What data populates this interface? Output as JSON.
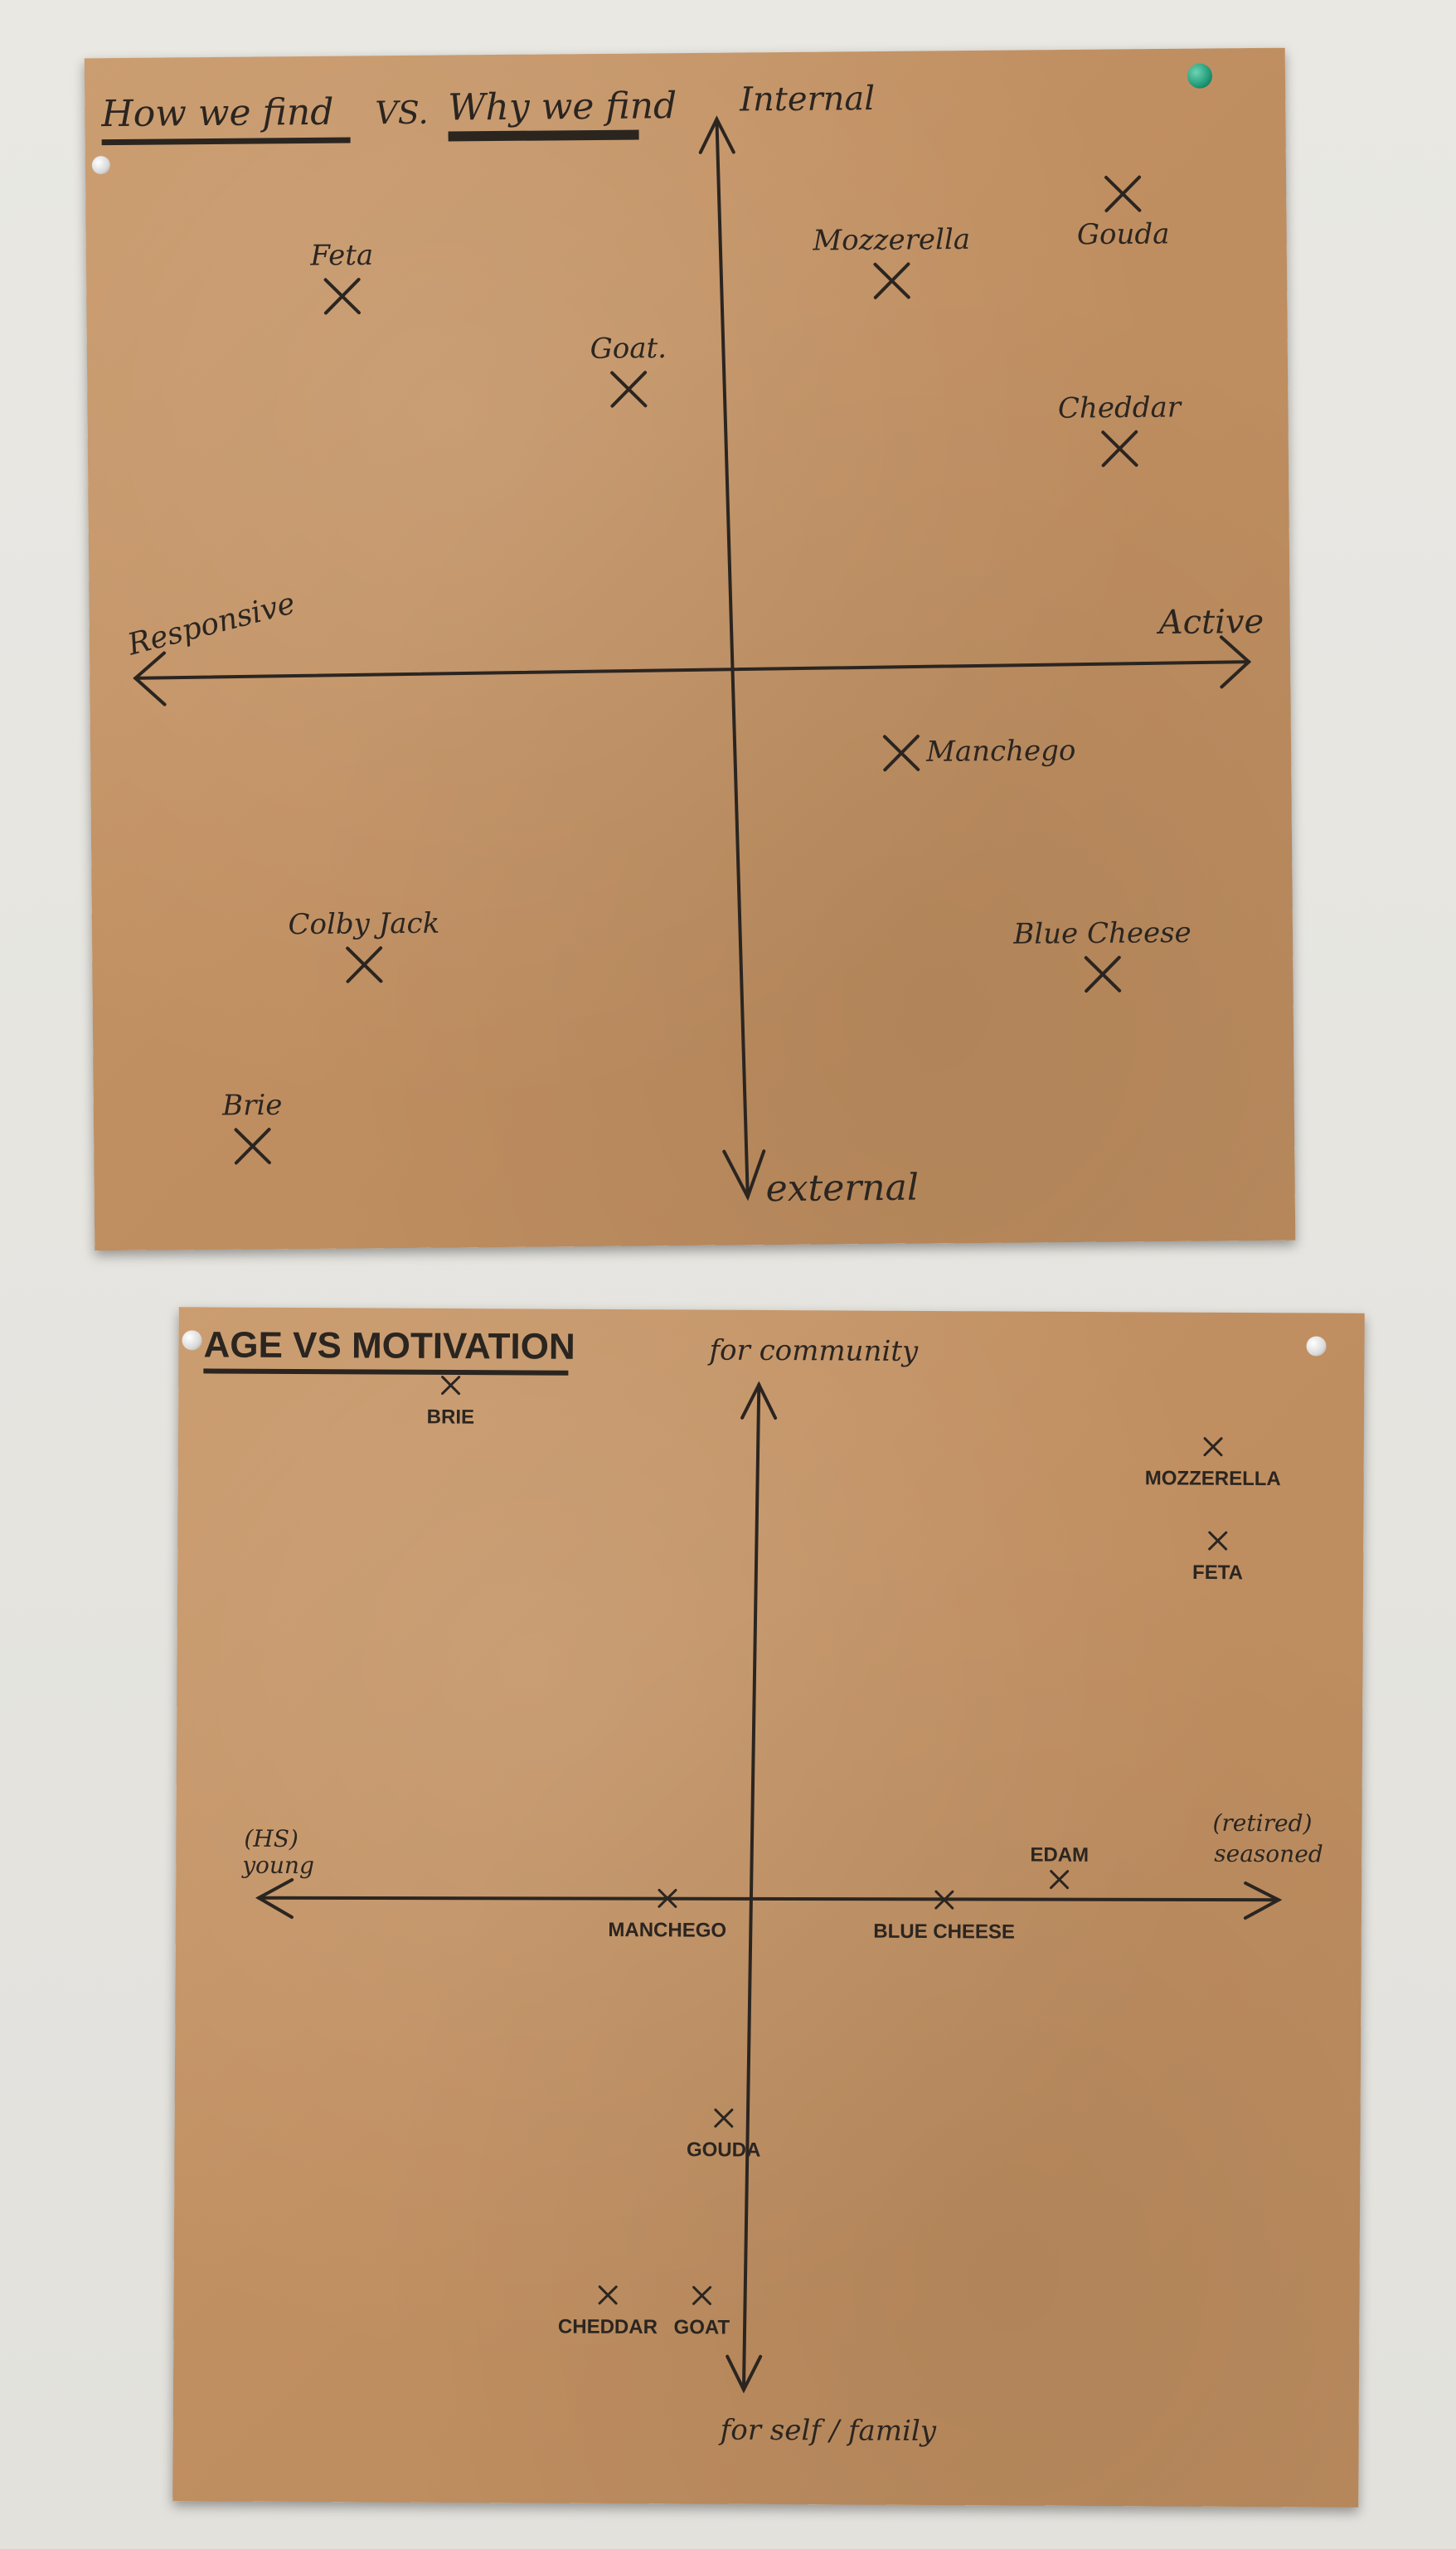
{
  "posters": [
    {
      "title_left": "How we find",
      "title_mid": "VS.",
      "title_right": "Why we find",
      "axis_top": "Internal",
      "axis_bottom": "external",
      "axis_left": "Responsive",
      "axis_right": "Active"
    },
    {
      "title": "AGE VS MOTIVATION",
      "axis_top": "for community",
      "axis_bottom": "for self / family",
      "axis_left_line1": "(HS)",
      "axis_left_line2": "young",
      "axis_right_line1": "(retired)",
      "axis_right_line2": "seasoned"
    }
  ],
  "chart_data": [
    {
      "type": "scatter",
      "title": "How we find VS. Why we find",
      "xlabel_negative": "Responsive",
      "xlabel_positive": "Active",
      "ylabel_positive": "Internal",
      "ylabel_negative": "external",
      "xlim": [
        -1,
        1
      ],
      "ylim": [
        -1,
        1
      ],
      "points": [
        {
          "label": "Feta",
          "x": -0.71,
          "y": 0.71
        },
        {
          "label": "Goat.",
          "x": -0.18,
          "y": 0.53
        },
        {
          "label": "Mozzerella",
          "x": 0.31,
          "y": 0.73
        },
        {
          "label": "Gouda",
          "x": 0.74,
          "y": 0.89
        },
        {
          "label": "Cheddar",
          "x": 0.73,
          "y": 0.41
        },
        {
          "label": "Manchego",
          "x": 0.32,
          "y": -0.16
        },
        {
          "label": "Blue Cheese",
          "x": 0.69,
          "y": -0.58
        },
        {
          "label": "Colby Jack",
          "x": -0.68,
          "y": -0.55
        },
        {
          "label": "Brie",
          "x": -0.89,
          "y": -0.89
        }
      ]
    },
    {
      "type": "scatter",
      "title": "AGE VS MOTIVATION",
      "xlabel_negative": "(HS) young",
      "xlabel_positive": "(retired) seasoned",
      "ylabel_positive": "for community",
      "ylabel_negative": "for self / family",
      "xlim": [
        -1,
        1
      ],
      "ylim": [
        -1,
        1
      ],
      "points": [
        {
          "label": "BRIE",
          "x": -0.59,
          "y": 0.98
        },
        {
          "label": "MOZZERELLA",
          "x": 0.87,
          "y": 0.87
        },
        {
          "label": "FETA",
          "x": 0.88,
          "y": 0.69
        },
        {
          "label": "EDAM",
          "x": 0.58,
          "y": 0.04
        },
        {
          "label": "MANCHEGO",
          "x": -0.17,
          "y": 0.0
        },
        {
          "label": "BLUE CHEESE",
          "x": 0.36,
          "y": 0.0
        },
        {
          "label": "GOUDA",
          "x": -0.06,
          "y": -0.42
        },
        {
          "label": "CHEDDAR",
          "x": -0.28,
          "y": -0.76
        },
        {
          "label": "GOAT",
          "x": -0.1,
          "y": -0.76
        }
      ]
    }
  ],
  "colors": {
    "kraft_paper": "#c49466",
    "ink": "#2b2520",
    "wall": "#e7e6e1",
    "green_pin": "#1f9a77"
  }
}
